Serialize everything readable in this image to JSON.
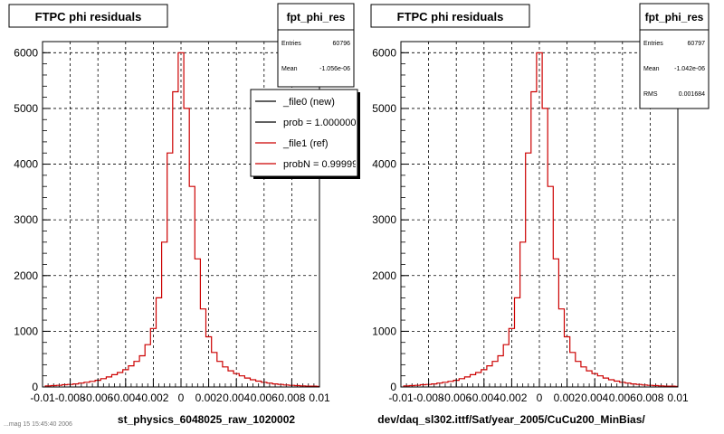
{
  "footer_note": "...mag 15 15:45:40 2006",
  "chart_data": [
    {
      "type": "line",
      "title": "FTPC phi residuals",
      "xlabel": "st_physics_6048025_raw_1020002",
      "ylabel": "",
      "xlim": [
        -0.01,
        0.01
      ],
      "ylim": [
        0,
        6200
      ],
      "xticks": [
        -0.01,
        -0.008,
        -0.006,
        -0.004,
        -0.002,
        0,
        0.002,
        0.004,
        0.006,
        0.008,
        0.01
      ],
      "xtick_labels": [
        "-0.01",
        "-0.008",
        "-0.006",
        "-0.004",
        "-0.002",
        "0",
        "0.002",
        "0.004",
        "0.006",
        "0.008",
        "0.01"
      ],
      "yticks": [
        0,
        1000,
        2000,
        3000,
        4000,
        5000,
        6000
      ],
      "ytick_labels": [
        "0",
        "1000",
        "2000",
        "3000",
        "4000",
        "5000",
        "6000"
      ],
      "grid": true,
      "stats": {
        "name": "fpt_phi_res",
        "rows": [
          {
            "label": "Entries",
            "value": "60796"
          },
          {
            "label": "Mean",
            "value": "-1.056e-06"
          }
        ]
      },
      "legend": {
        "placement": "top-right",
        "entries": [
          {
            "label": "_file0 (new)",
            "color": "#000000"
          },
          {
            "label": "prob = 1.000000",
            "color": "#000000"
          },
          {
            "label": "_file1 (ref)",
            "color": "#cc0000"
          },
          {
            "label": "probN = 0.99999",
            "color": "#cc0000"
          }
        ]
      },
      "series": [
        {
          "color": "#cc0000",
          "x": [
            -0.0096,
            -0.0092,
            -0.0088,
            -0.0084,
            -0.008,
            -0.0076,
            -0.0072,
            -0.0068,
            -0.0064,
            -0.006,
            -0.0056,
            -0.0052,
            -0.0048,
            -0.0044,
            -0.004,
            -0.0036,
            -0.0032,
            -0.0028,
            -0.0024,
            -0.002,
            -0.0016,
            -0.0012,
            -0.0008,
            -0.0004,
            0,
            0.0004,
            0.0008,
            0.0012,
            0.0016,
            0.002,
            0.0024,
            0.0028,
            0.0032,
            0.0036,
            0.004,
            0.0044,
            0.0048,
            0.0052,
            0.0056,
            0.006,
            0.0064,
            0.0068,
            0.0072,
            0.0076,
            0.008,
            0.0084,
            0.0088,
            0.0092,
            0.0096,
            0.01
          ],
          "values": [
            20,
            25,
            30,
            40,
            45,
            55,
            70,
            85,
            100,
            120,
            150,
            180,
            220,
            260,
            310,
            380,
            460,
            560,
            760,
            1050,
            1600,
            2600,
            4200,
            5300,
            6000,
            5000,
            3600,
            2300,
            1400,
            900,
            620,
            460,
            360,
            290,
            240,
            200,
            160,
            130,
            105,
            85,
            70,
            55,
            45,
            35,
            30,
            25,
            20,
            15,
            15,
            10
          ]
        }
      ]
    },
    {
      "type": "line",
      "title": "FTPC phi residuals",
      "xlabel": "dev/daq_sl302.ittf/Sat/year_2005/CuCu200_MinBias/",
      "ylabel": "",
      "xlim": [
        -0.01,
        0.01
      ],
      "ylim": [
        0,
        6200
      ],
      "xticks": [
        -0.01,
        -0.008,
        -0.006,
        -0.004,
        -0.002,
        0,
        0.002,
        0.004,
        0.006,
        0.008,
        0.01
      ],
      "xtick_labels": [
        "-0.01",
        "-0.008",
        "-0.006",
        "-0.004",
        "-0.002",
        "0",
        "0.002",
        "0.004",
        "0.006",
        "0.008",
        "0.01"
      ],
      "yticks": [
        0,
        1000,
        2000,
        3000,
        4000,
        5000,
        6000
      ],
      "ytick_labels": [
        "0",
        "1000",
        "2000",
        "3000",
        "4000",
        "5000",
        "6000"
      ],
      "grid": true,
      "stats": {
        "name": "fpt_phi_res",
        "rows": [
          {
            "label": "Entries",
            "value": "60797"
          },
          {
            "label": "Mean",
            "value": "-1.042e-06"
          },
          {
            "label": "RMS",
            "value": "0.001684"
          }
        ]
      },
      "series": [
        {
          "color": "#cc0000",
          "x": [
            -0.0096,
            -0.0092,
            -0.0088,
            -0.0084,
            -0.008,
            -0.0076,
            -0.0072,
            -0.0068,
            -0.0064,
            -0.006,
            -0.0056,
            -0.0052,
            -0.0048,
            -0.0044,
            -0.004,
            -0.0036,
            -0.0032,
            -0.0028,
            -0.0024,
            -0.002,
            -0.0016,
            -0.0012,
            -0.0008,
            -0.0004,
            0,
            0.0004,
            0.0008,
            0.0012,
            0.0016,
            0.002,
            0.0024,
            0.0028,
            0.0032,
            0.0036,
            0.004,
            0.0044,
            0.0048,
            0.0052,
            0.0056,
            0.006,
            0.0064,
            0.0068,
            0.0072,
            0.0076,
            0.008,
            0.0084,
            0.0088,
            0.0092,
            0.0096,
            0.01
          ],
          "values": [
            20,
            25,
            30,
            40,
            45,
            55,
            70,
            85,
            100,
            120,
            150,
            180,
            220,
            260,
            310,
            380,
            460,
            560,
            760,
            1050,
            1600,
            2600,
            4200,
            5300,
            6000,
            5000,
            3600,
            2300,
            1400,
            900,
            620,
            460,
            360,
            290,
            240,
            200,
            160,
            130,
            105,
            85,
            70,
            55,
            45,
            35,
            30,
            25,
            20,
            15,
            15,
            10
          ]
        }
      ]
    }
  ]
}
